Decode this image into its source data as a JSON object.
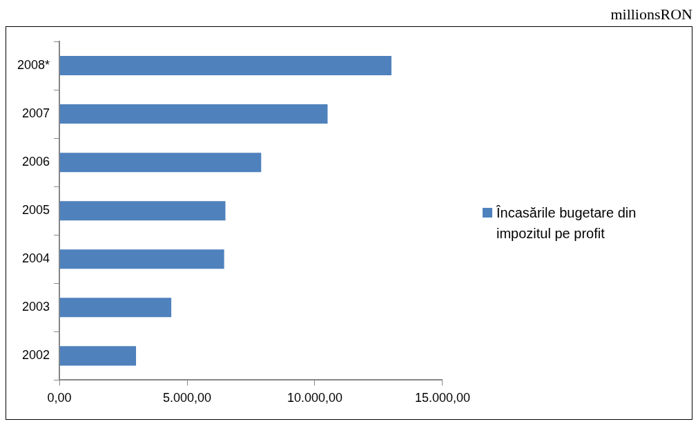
{
  "chart_data": {
    "type": "bar",
    "orientation": "horizontal",
    "annotations": [
      "millionsRON"
    ],
    "categories": [
      "2008*",
      "2007",
      "2006",
      "2005",
      "2004",
      "2003",
      "2002"
    ],
    "series": [
      {
        "name": "Încasările bugetare din impozitul pe profit",
        "color": "#4f81bd",
        "values": [
          13000,
          10500,
          7900,
          6500,
          6450,
          4380,
          3000
        ]
      }
    ],
    "xlim": [
      0,
      15000
    ],
    "xticks": [
      {
        "value": 0,
        "label": "0,00"
      },
      {
        "value": 5000,
        "label": "5.000,00"
      },
      {
        "value": 10000,
        "label": "10.000,00"
      },
      {
        "value": 15000,
        "label": "15.000,00"
      }
    ],
    "grid": false,
    "legend": "right"
  }
}
